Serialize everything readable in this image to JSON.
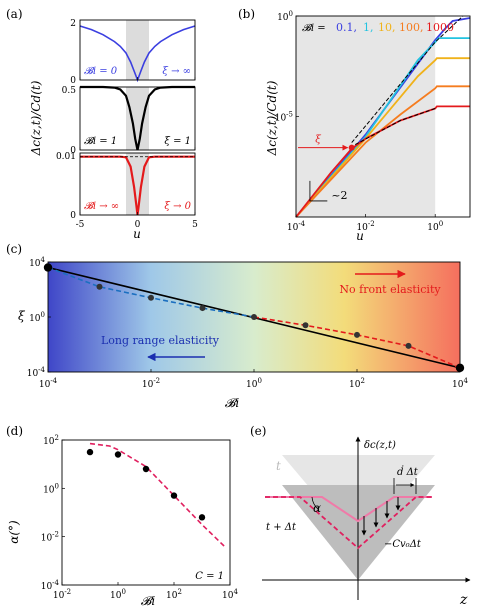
{
  "chart_data": [
    {
      "id": "a",
      "type": "line",
      "panel_label": "(a)",
      "xlabel": "u",
      "ylabel": "Δc(z,t)/Cd(t)",
      "xticks": [
        "-5",
        "0",
        "5"
      ],
      "xlim": [
        -5,
        5
      ],
      "shaded_x": [
        -1,
        1
      ],
      "subplots": [
        {
          "ylim": [
            0,
            2
          ],
          "yticks": [
            "0",
            "2"
          ],
          "color": "#3b3fe0",
          "label_left": "𝓑i = 0",
          "label_right": "ξ → ∞",
          "series": {
            "x": [
              -5,
              -4,
              -3,
              -2,
              -1.5,
              -1,
              -0.6,
              -0.3,
              -0.1,
              0,
              0.1,
              0.3,
              0.6,
              1,
              1.5,
              2,
              3,
              4,
              5
            ],
            "y": [
              1.8,
              1.68,
              1.51,
              1.28,
              1.12,
              0.9,
              0.6,
              0.3,
              0.1,
              0,
              0.1,
              0.3,
              0.6,
              0.9,
              1.12,
              1.28,
              1.51,
              1.68,
              1.8
            ]
          }
        },
        {
          "ylim": [
            0,
            0.5
          ],
          "yticks": [
            "0",
            "0.5"
          ],
          "color": "#000000",
          "label_left": "𝓑i = 1",
          "label_right": "ξ = 1",
          "series": {
            "x": [
              -5,
              -4,
              -3,
              -2,
              -1.5,
              -1,
              -0.7,
              -0.4,
              -0.2,
              0,
              0.2,
              0.4,
              0.7,
              1,
              1.5,
              2,
              3,
              4,
              5
            ],
            "y": [
              0.5,
              0.5,
              0.5,
              0.495,
              0.48,
              0.43,
              0.34,
              0.21,
              0.09,
              0,
              0.09,
              0.21,
              0.34,
              0.43,
              0.48,
              0.495,
              0.5,
              0.5,
              0.5
            ]
          }
        },
        {
          "ylim": [
            0,
            0.01
          ],
          "yticks": [
            "0",
            "0.01"
          ],
          "color": "#e41a1c",
          "label_left": "𝓑i → ∞",
          "label_right": "ξ → 0",
          "series": {
            "x": [
              -5,
              -3,
              -1.5,
              -1,
              -0.6,
              -0.3,
              -0.1,
              0,
              0.1,
              0.3,
              0.6,
              1,
              1.5,
              3,
              5
            ],
            "y": [
              0.0094,
              0.0094,
              0.0094,
              0.0093,
              0.0078,
              0.0045,
              0.0015,
              0,
              0.0015,
              0.0045,
              0.0078,
              0.0093,
              0.0094,
              0.0094,
              0.0094
            ]
          }
        }
      ]
    },
    {
      "id": "b",
      "type": "line",
      "panel_label": "(b)",
      "xlabel": "u",
      "ylabel": "Δc(z,t)/Cd(t)",
      "log_x": true,
      "log_y": true,
      "x_exp_range": [
        -4,
        1
      ],
      "y_exp_range": [
        -10,
        0
      ],
      "xticks": [
        {
          "base": "10",
          "exp": "-4",
          "v": -4
        },
        {
          "base": "10",
          "exp": "-2",
          "v": -2
        },
        {
          "base": "10",
          "exp": "0",
          "v": 0
        }
      ],
      "yticks": [
        {
          "base": "10",
          "exp": "0",
          "v": 0
        },
        {
          "base": "10",
          "exp": "-5",
          "v": -5
        }
      ],
      "shaded_x_exp": [
        -4,
        0
      ],
      "legend_prefix": "𝓑i = ",
      "legend_entries": [
        {
          "text": "0.1,",
          "color": "#3b3fe0"
        },
        {
          "text": "1,",
          "color": "#22c3e0"
        },
        {
          "text": "10,",
          "color": "#f0b21a"
        },
        {
          "text": "100,",
          "color": "#f57c1f"
        },
        {
          "text": "1000",
          "color": "#e41a1c"
        }
      ],
      "series": [
        {
          "color": "#3b3fe0",
          "x_exp": [
            -4,
            -2,
            0,
            0.3,
            0.5,
            1
          ],
          "y_exp": [
            -10,
            -5.9,
            -1.2,
            -0.6,
            -0.25,
            -0.1
          ]
        },
        {
          "color": "#22c3e0",
          "x_exp": [
            -4,
            -2,
            -0.5,
            0,
            0.1,
            1
          ],
          "y_exp": [
            -10,
            -6,
            -2.2,
            -1.3,
            -1.1,
            -1.1
          ]
        },
        {
          "color": "#f0b21a",
          "x_exp": [
            -4,
            -2,
            -0.5,
            0,
            0.05,
            1
          ],
          "y_exp": [
            -10,
            -6.1,
            -3.0,
            -2.2,
            -2.1,
            -2.1
          ]
        },
        {
          "color": "#f57c1f",
          "x_exp": [
            -4,
            -2,
            -1,
            0,
            0.05,
            1
          ],
          "y_exp": [
            -10,
            -6.3,
            -4.9,
            -3.6,
            -3.5,
            -3.5
          ]
        },
        {
          "color": "#e41a1c",
          "x_exp": [
            -4,
            -3,
            -2.4,
            -2,
            -1,
            0,
            0.05,
            1
          ],
          "y_exp": [
            -10,
            -7.8,
            -6.6,
            -6.1,
            -5.2,
            -4.6,
            -4.5,
            -4.5
          ]
        }
      ],
      "dashed_upper": {
        "x_exp": [
          -2.4,
          0,
          0.8
        ],
        "y_exp": [
          -6.3,
          -1.3,
          0
        ]
      },
      "dashed_lower": {
        "x_exp": [
          -2.3,
          -1,
          0
        ],
        "y_exp": [
          -6.4,
          -5.2,
          -4.6
        ]
      },
      "xi_point": {
        "x_exp": -2.4,
        "y_exp": -6.55
      },
      "xi_label": "ξ",
      "slope_label": "~2"
    },
    {
      "id": "c",
      "type": "scatter",
      "panel_label": "(c)",
      "xlabel": "𝓑i",
      "ylabel": "ξ",
      "log_x": true,
      "log_y": true,
      "x_exp_range": [
        -4,
        4
      ],
      "y_exp_range": [
        -4,
        4
      ],
      "xticks": [
        {
          "base": "10",
          "exp": "-4",
          "v": -4
        },
        {
          "base": "10",
          "exp": "-2",
          "v": -2
        },
        {
          "base": "10",
          "exp": "0",
          "v": 0
        },
        {
          "base": "10",
          "exp": "2",
          "v": 2
        },
        {
          "base": "10",
          "exp": "4",
          "v": 4
        }
      ],
      "yticks": [
        {
          "base": "10",
          "exp": "4",
          "v": 4
        },
        {
          "base": "10",
          "exp": "0",
          "v": 0
        },
        {
          "base": "10",
          "exp": "-4",
          "v": -4
        }
      ],
      "points": {
        "x_exp": [
          -4,
          -3,
          -2,
          -1,
          0,
          1,
          2,
          3,
          4
        ],
        "y_exp": [
          3.6,
          2.2,
          1.4,
          0.65,
          0,
          -0.6,
          -1.3,
          -2.1,
          -3.7
        ]
      },
      "fit_line": {
        "x_exp": [
          -4,
          4
        ],
        "y_exp": [
          3.6,
          -3.7
        ]
      },
      "blue_dashed": {
        "x_exp": [
          -4,
          -3,
          -2,
          -1,
          0
        ],
        "y_exp": [
          3.6,
          2.2,
          1.4,
          0.65,
          0
        ]
      },
      "red_dashed": {
        "x_exp": [
          0,
          1,
          2,
          3,
          4
        ],
        "y_exp": [
          0,
          -0.6,
          -1.3,
          -2.1,
          -3.7
        ]
      },
      "label_right": "No front elasticity",
      "label_left": "Long range elasticity"
    },
    {
      "id": "d",
      "type": "scatter",
      "panel_label": "(d)",
      "xlabel": "𝓑i",
      "ylabel": "α(°)",
      "log_x": true,
      "log_y": true,
      "x_exp_range": [
        -2,
        4
      ],
      "y_exp_range": [
        -4,
        2
      ],
      "xticks": [
        {
          "base": "10",
          "exp": "-2",
          "v": -2
        },
        {
          "base": "10",
          "exp": "0",
          "v": 0
        },
        {
          "base": "10",
          "exp": "2",
          "v": 2
        },
        {
          "base": "10",
          "exp": "4",
          "v": 4
        }
      ],
      "yticks": [
        {
          "base": "10",
          "exp": "2",
          "v": 2
        },
        {
          "base": "10",
          "exp": "0",
          "v": 0
        },
        {
          "base": "10",
          "exp": "-2",
          "v": -2
        },
        {
          "base": "10",
          "exp": "-4",
          "v": -4
        }
      ],
      "points": {
        "x_exp": [
          -1,
          0,
          1,
          2,
          3
        ],
        "y_exp": [
          1.5,
          1.4,
          0.8,
          -0.3,
          -1.2
        ]
      },
      "dashed": {
        "x_exp": [
          -1,
          -0.3,
          0,
          1,
          2,
          3,
          3.8
        ],
        "y_exp": [
          1.85,
          1.75,
          1.6,
          0.9,
          -0.3,
          -1.5,
          -2.4
        ]
      },
      "annotation": "C = 1"
    },
    {
      "id": "e",
      "type": "diagram",
      "panel_label": "(e)",
      "xlabel": "z",
      "ylabel": "δc(z,t)",
      "label_t": "t",
      "label_tdt": "t + Δt",
      "label_alpha": "α",
      "label_ddt": "ḋ Δt",
      "label_cvo": "−Cv₀Δt"
    }
  ]
}
